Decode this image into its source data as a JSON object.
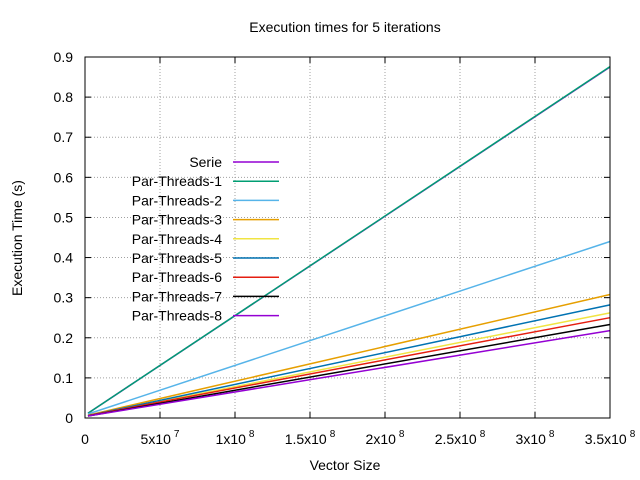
{
  "chart_data": {
    "type": "line",
    "title": "Execution times for 5 iterations",
    "xlabel": "Vector Size",
    "ylabel": "Execution Time (s)",
    "xlim": [
      0,
      350000000
    ],
    "ylim": [
      0,
      0.9
    ],
    "grid": true,
    "legend_position": "upper-left",
    "x_ticks": [
      {
        "value": 0,
        "mantissa": "0",
        "exp": ""
      },
      {
        "value": 50000000,
        "mantissa": "5x10",
        "exp": "7"
      },
      {
        "value": 100000000,
        "mantissa": "1x10",
        "exp": "8"
      },
      {
        "value": 150000000,
        "mantissa": "1.5x10",
        "exp": "8"
      },
      {
        "value": 200000000,
        "mantissa": "2x10",
        "exp": "8"
      },
      {
        "value": 250000000,
        "mantissa": "2.5x10",
        "exp": "8"
      },
      {
        "value": 300000000,
        "mantissa": "3x10",
        "exp": "8"
      },
      {
        "value": 350000000,
        "mantissa": "3.5x10",
        "exp": "8"
      }
    ],
    "y_ticks": [
      "0",
      "0.1",
      "0.2",
      "0.3",
      "0.4",
      "0.5",
      "0.6",
      "0.7",
      "0.8",
      "0.9"
    ],
    "x": [
      2000000,
      350000000
    ],
    "series": [
      {
        "name": "Serie",
        "color": "#9400d3",
        "values": [
          0.012,
          0.875
        ]
      },
      {
        "name": "Par-Threads-1",
        "color": "#009e73",
        "values": [
          0.012,
          0.876
        ]
      },
      {
        "name": "Par-Threads-2",
        "color": "#56b4e9",
        "values": [
          0.01,
          0.44
        ]
      },
      {
        "name": "Par-Threads-3",
        "color": "#e69f00",
        "values": [
          0.007,
          0.308
        ]
      },
      {
        "name": "Par-Threads-4",
        "color": "#f0e442",
        "values": [
          0.006,
          0.262
        ]
      },
      {
        "name": "Par-Threads-5",
        "color": "#0072b2",
        "values": [
          0.006,
          0.282
        ]
      },
      {
        "name": "Par-Threads-6",
        "color": "#e51e10",
        "values": [
          0.006,
          0.25
        ]
      },
      {
        "name": "Par-Threads-7",
        "color": "#000000",
        "values": [
          0.005,
          0.233
        ]
      },
      {
        "name": "Par-Threads-8",
        "color": "#9400d3",
        "values": [
          0.005,
          0.218
        ]
      }
    ]
  }
}
